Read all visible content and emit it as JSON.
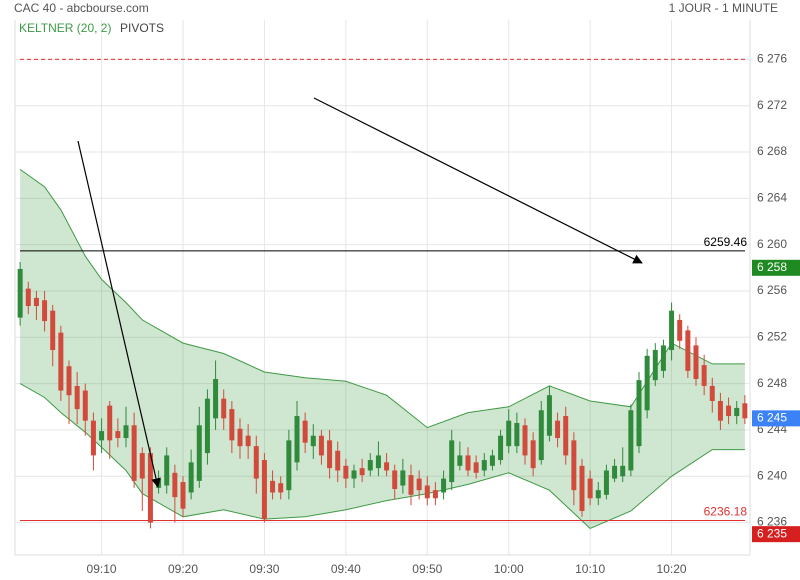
{
  "chart_data": {
    "type": "candlestick",
    "title": "CAC 40 - abcbourse.com",
    "period": "1 JOUR - 1 MINUTE",
    "levels_name": "PIVOTS",
    "up_color": "#2f8a3c",
    "down_color": "#d24a3c",
    "x": [
      "09:00",
      "09:01",
      "09:02",
      "09:03",
      "09:04",
      "09:05",
      "09:06",
      "09:07",
      "09:08",
      "09:09",
      "09:10",
      "09:11",
      "09:12",
      "09:13",
      "09:14",
      "09:15",
      "09:16",
      "09:17",
      "09:18",
      "09:19",
      "09:20",
      "09:21",
      "09:22",
      "09:23",
      "09:24",
      "09:25",
      "09:26",
      "09:27",
      "09:28",
      "09:29",
      "09:30",
      "09:31",
      "09:32",
      "09:33",
      "09:34",
      "09:35",
      "09:36",
      "09:37",
      "09:38",
      "09:39",
      "09:40",
      "09:41",
      "09:42",
      "09:43",
      "09:44",
      "09:45",
      "09:46",
      "09:47",
      "09:48",
      "09:49",
      "09:50",
      "09:51",
      "09:52",
      "09:53",
      "09:54",
      "09:55",
      "09:56",
      "09:57",
      "09:58",
      "09:59",
      "10:00",
      "10:01",
      "10:02",
      "10:03",
      "10:04",
      "10:05",
      "10:06",
      "10:07",
      "10:08",
      "10:09",
      "10:10",
      "10:11",
      "10:12",
      "10:13",
      "10:14",
      "10:15",
      "10:16",
      "10:17",
      "10:18",
      "10:19",
      "10:20",
      "10:21",
      "10:22",
      "10:23",
      "10:24",
      "10:25",
      "10:26",
      "10:27",
      "10:28",
      "10:29"
    ],
    "open": [
      6253.7,
      6256.2,
      6255.4,
      6255.2,
      6254.3,
      6252.4,
      6249.5,
      6247.8,
      6247.4,
      6244.8,
      6243.1,
      6246.1,
      6243.9,
      6243.3,
      6244.4,
      6242,
      6242,
      6239,
      6239.2,
      6240.3,
      6239.5,
      6238.6,
      6239.6,
      6242,
      6245,
      6246.7,
      6245.8,
      6244.1,
      6243.5,
      6242.6,
      6241.4,
      6239.6,
      6239.4,
      6238.8,
      6241.2,
      6244.8,
      6242.6,
      6243.5,
      6243.1,
      6242.2,
      6240.9,
      6239.8,
      6240.7,
      6240.5,
      6240.7,
      6241.2,
      6240.5,
      6239.2,
      6240.1,
      6239.8,
      6239.2,
      6238.8,
      6238.6,
      6239.5,
      6240.9,
      6241.8,
      6241.2,
      6240.5,
      6240.9,
      6241.4,
      6242.6,
      6242.6,
      6244.4,
      6243.1,
      6241.4,
      6243.5,
      6244.8,
      6245.2,
      6243.1,
      6240.9,
      6239.8,
      6238.1,
      6238.4,
      6239.8,
      6240,
      6240.5,
      6242.6,
      6245.7,
      6248.3,
      6249.1,
      6250.9,
      6253.5,
      6252.6,
      6251.3,
      6249.6,
      6247.8,
      6246.5,
      6246.1,
      6245.2,
      6246.3
    ],
    "high": [
      6258.5,
      6256.8,
      6256,
      6256,
      6254.8,
      6253,
      6250,
      6249,
      6248,
      6245.5,
      6245,
      6246.5,
      6245,
      6246,
      6245.5,
      6242.5,
      6242.5,
      6240.5,
      6242.5,
      6241,
      6240,
      6242.3,
      6246,
      6247.5,
      6250,
      6247.5,
      6246.5,
      6245,
      6244.5,
      6243.5,
      6242,
      6240.5,
      6240,
      6244,
      6246.5,
      6245.5,
      6244.5,
      6244,
      6244,
      6243,
      6241.5,
      6241,
      6241.5,
      6242,
      6243,
      6242,
      6241,
      6241.5,
      6241,
      6240.5,
      6240,
      6239.5,
      6240.5,
      6244,
      6243,
      6242.5,
      6241.8,
      6242,
      6242.3,
      6244,
      6245.8,
      6245.5,
      6245,
      6243.8,
      6246.5,
      6247.8,
      6245.5,
      6246,
      6243.8,
      6241.5,
      6240.5,
      6239.5,
      6241,
      6241.5,
      6242.5,
      6246.2,
      6249,
      6251,
      6251.5,
      6251.8,
      6255,
      6254,
      6253,
      6252,
      6250.5,
      6248.5,
      6247.2,
      6246.8,
      6246.5,
      6247
    ],
    "low": [
      6253,
      6254,
      6253.5,
      6252.5,
      6249.5,
      6246.5,
      6244.5,
      6244.5,
      6243.5,
      6240.5,
      6242,
      6241.5,
      6242.5,
      6242.5,
      6239,
      6237,
      6235.5,
      6238.5,
      6238.5,
      6236,
      6236.5,
      6238,
      6239,
      6241,
      6244,
      6244,
      6242,
      6241.5,
      6241.5,
      6238.5,
      6236,
      6238,
      6238,
      6238,
      6240.5,
      6242,
      6241.5,
      6241,
      6239.8,
      6239.5,
      6239,
      6239,
      6239.5,
      6240,
      6240,
      6240,
      6238,
      6238.5,
      6237.5,
      6238,
      6237.5,
      6237.5,
      6238,
      6238.8,
      6240.5,
      6240,
      6239.8,
      6240,
      6240.5,
      6241,
      6242,
      6242,
      6241,
      6240,
      6241,
      6243,
      6242.5,
      6241,
      6237.5,
      6236.5,
      6237.5,
      6237.5,
      6238,
      6239.5,
      6239.5,
      6240,
      6242,
      6245,
      6247.8,
      6248.5,
      6250,
      6251,
      6248.5,
      6247.8,
      6247,
      6245.5,
      6244,
      6244.5,
      6244.5,
      6244.5
    ],
    "close": [
      6257.9,
      6254.7,
      6254.7,
      6253.4,
      6250.9,
      6247.4,
      6247,
      6245.8,
      6244.8,
      6241.8,
      6243.9,
      6243.1,
      6243.3,
      6244.4,
      6239.6,
      6239.8,
      6236,
      6239.8,
      6241.8,
      6238.2,
      6237.2,
      6241.2,
      6244.4,
      6246.7,
      6248.4,
      6245,
      6243.1,
      6242.6,
      6242.6,
      6239.8,
      6236.3,
      6238.6,
      6238.6,
      6243.1,
      6245.2,
      6242.9,
      6243.5,
      6241.8,
      6240.7,
      6240.5,
      6239.8,
      6240.5,
      6240.1,
      6241.4,
      6241.8,
      6240.5,
      6238.9,
      6240.5,
      6238.4,
      6238.8,
      6238.1,
      6238.1,
      6239.8,
      6243.1,
      6241.8,
      6240.5,
      6240.3,
      6241.4,
      6241.8,
      6243.5,
      6244.8,
      6244.6,
      6241.8,
      6240.7,
      6245.7,
      6247,
      6243.3,
      6241.8,
      6238.8,
      6237,
      6238.1,
      6238.8,
      6240.5,
      6240.9,
      6240.9,
      6245.7,
      6248.3,
      6250.4,
      6250.9,
      6251.3,
      6254.3,
      6251.7,
      6249.1,
      6248.4,
      6247.8,
      6246.5,
      6244.8,
      6245.2,
      6245.9,
      6245
    ],
    "band": {
      "name": "KELTNER (20, 2)",
      "color": "#3f9a45",
      "x": [
        "09:00",
        "09:03",
        "09:05",
        "09:08",
        "09:10",
        "09:13",
        "09:15",
        "09:20",
        "09:25",
        "09:30",
        "09:35",
        "09:40",
        "09:45",
        "09:50",
        "09:55",
        "10:00",
        "10:05",
        "10:10",
        "10:15",
        "10:20",
        "10:25",
        "10:29"
      ],
      "upper": [
        6266.5,
        6265,
        6263,
        6259,
        6257,
        6255,
        6253.5,
        6251.5,
        6250.6,
        6249,
        6248.5,
        6248.2,
        6247,
        6244.2,
        6245.5,
        6246,
        6247.8,
        6246.5,
        6246,
        6251.5,
        6249.7,
        6249.7
      ],
      "lower": [
        6248,
        6246.8,
        6245.5,
        6243.8,
        6242.5,
        6240.5,
        6238.5,
        6236.5,
        6237.1,
        6236.3,
        6236.5,
        6237.1,
        6237.9,
        6238.5,
        6239.3,
        6240.3,
        6238.8,
        6235.5,
        6237,
        6240,
        6242.3,
        6242.3
      ]
    },
    "levels": [
      {
        "value": 6276,
        "color": "#e03030",
        "dashed": true
      },
      {
        "value": 6259.46,
        "color": "#000000",
        "dashed": false,
        "labeled": true
      },
      {
        "value": 6236.18,
        "color": "#e03030",
        "dashed": false,
        "labeled": true
      }
    ],
    "price_tags": [
      {
        "value": 6258,
        "label": "6 258",
        "color": "#1f8a22"
      },
      {
        "value": 6245,
        "label": "6 245",
        "color": "#3b82f6"
      },
      {
        "value": 6235,
        "label": "6 235",
        "color": "#d61f1f"
      }
    ],
    "xlim": [
      "08:59",
      "10:30"
    ],
    "xticks": [
      "09:10",
      "09:20",
      "09:30",
      "09:40",
      "09:50",
      "10:00",
      "10:10",
      "10:20"
    ],
    "ylim": [
      6233.2,
      6279.4
    ],
    "yticks": [
      {
        "value": 6236,
        "label": "6 236"
      },
      {
        "value": 6240,
        "label": "6 240"
      },
      {
        "value": 6244,
        "label": "6 244"
      },
      {
        "value": 6248,
        "label": "6 248"
      },
      {
        "value": 6252,
        "label": "6 252"
      },
      {
        "value": 6256,
        "label": "6 256"
      },
      {
        "value": 6260,
        "label": "6 260"
      },
      {
        "value": 6264,
        "label": "6 264"
      },
      {
        "value": 6268,
        "label": "6 268"
      },
      {
        "value": 6272,
        "label": "6 272"
      },
      {
        "value": 6276,
        "label": "6 276"
      }
    ],
    "grid": true
  }
}
